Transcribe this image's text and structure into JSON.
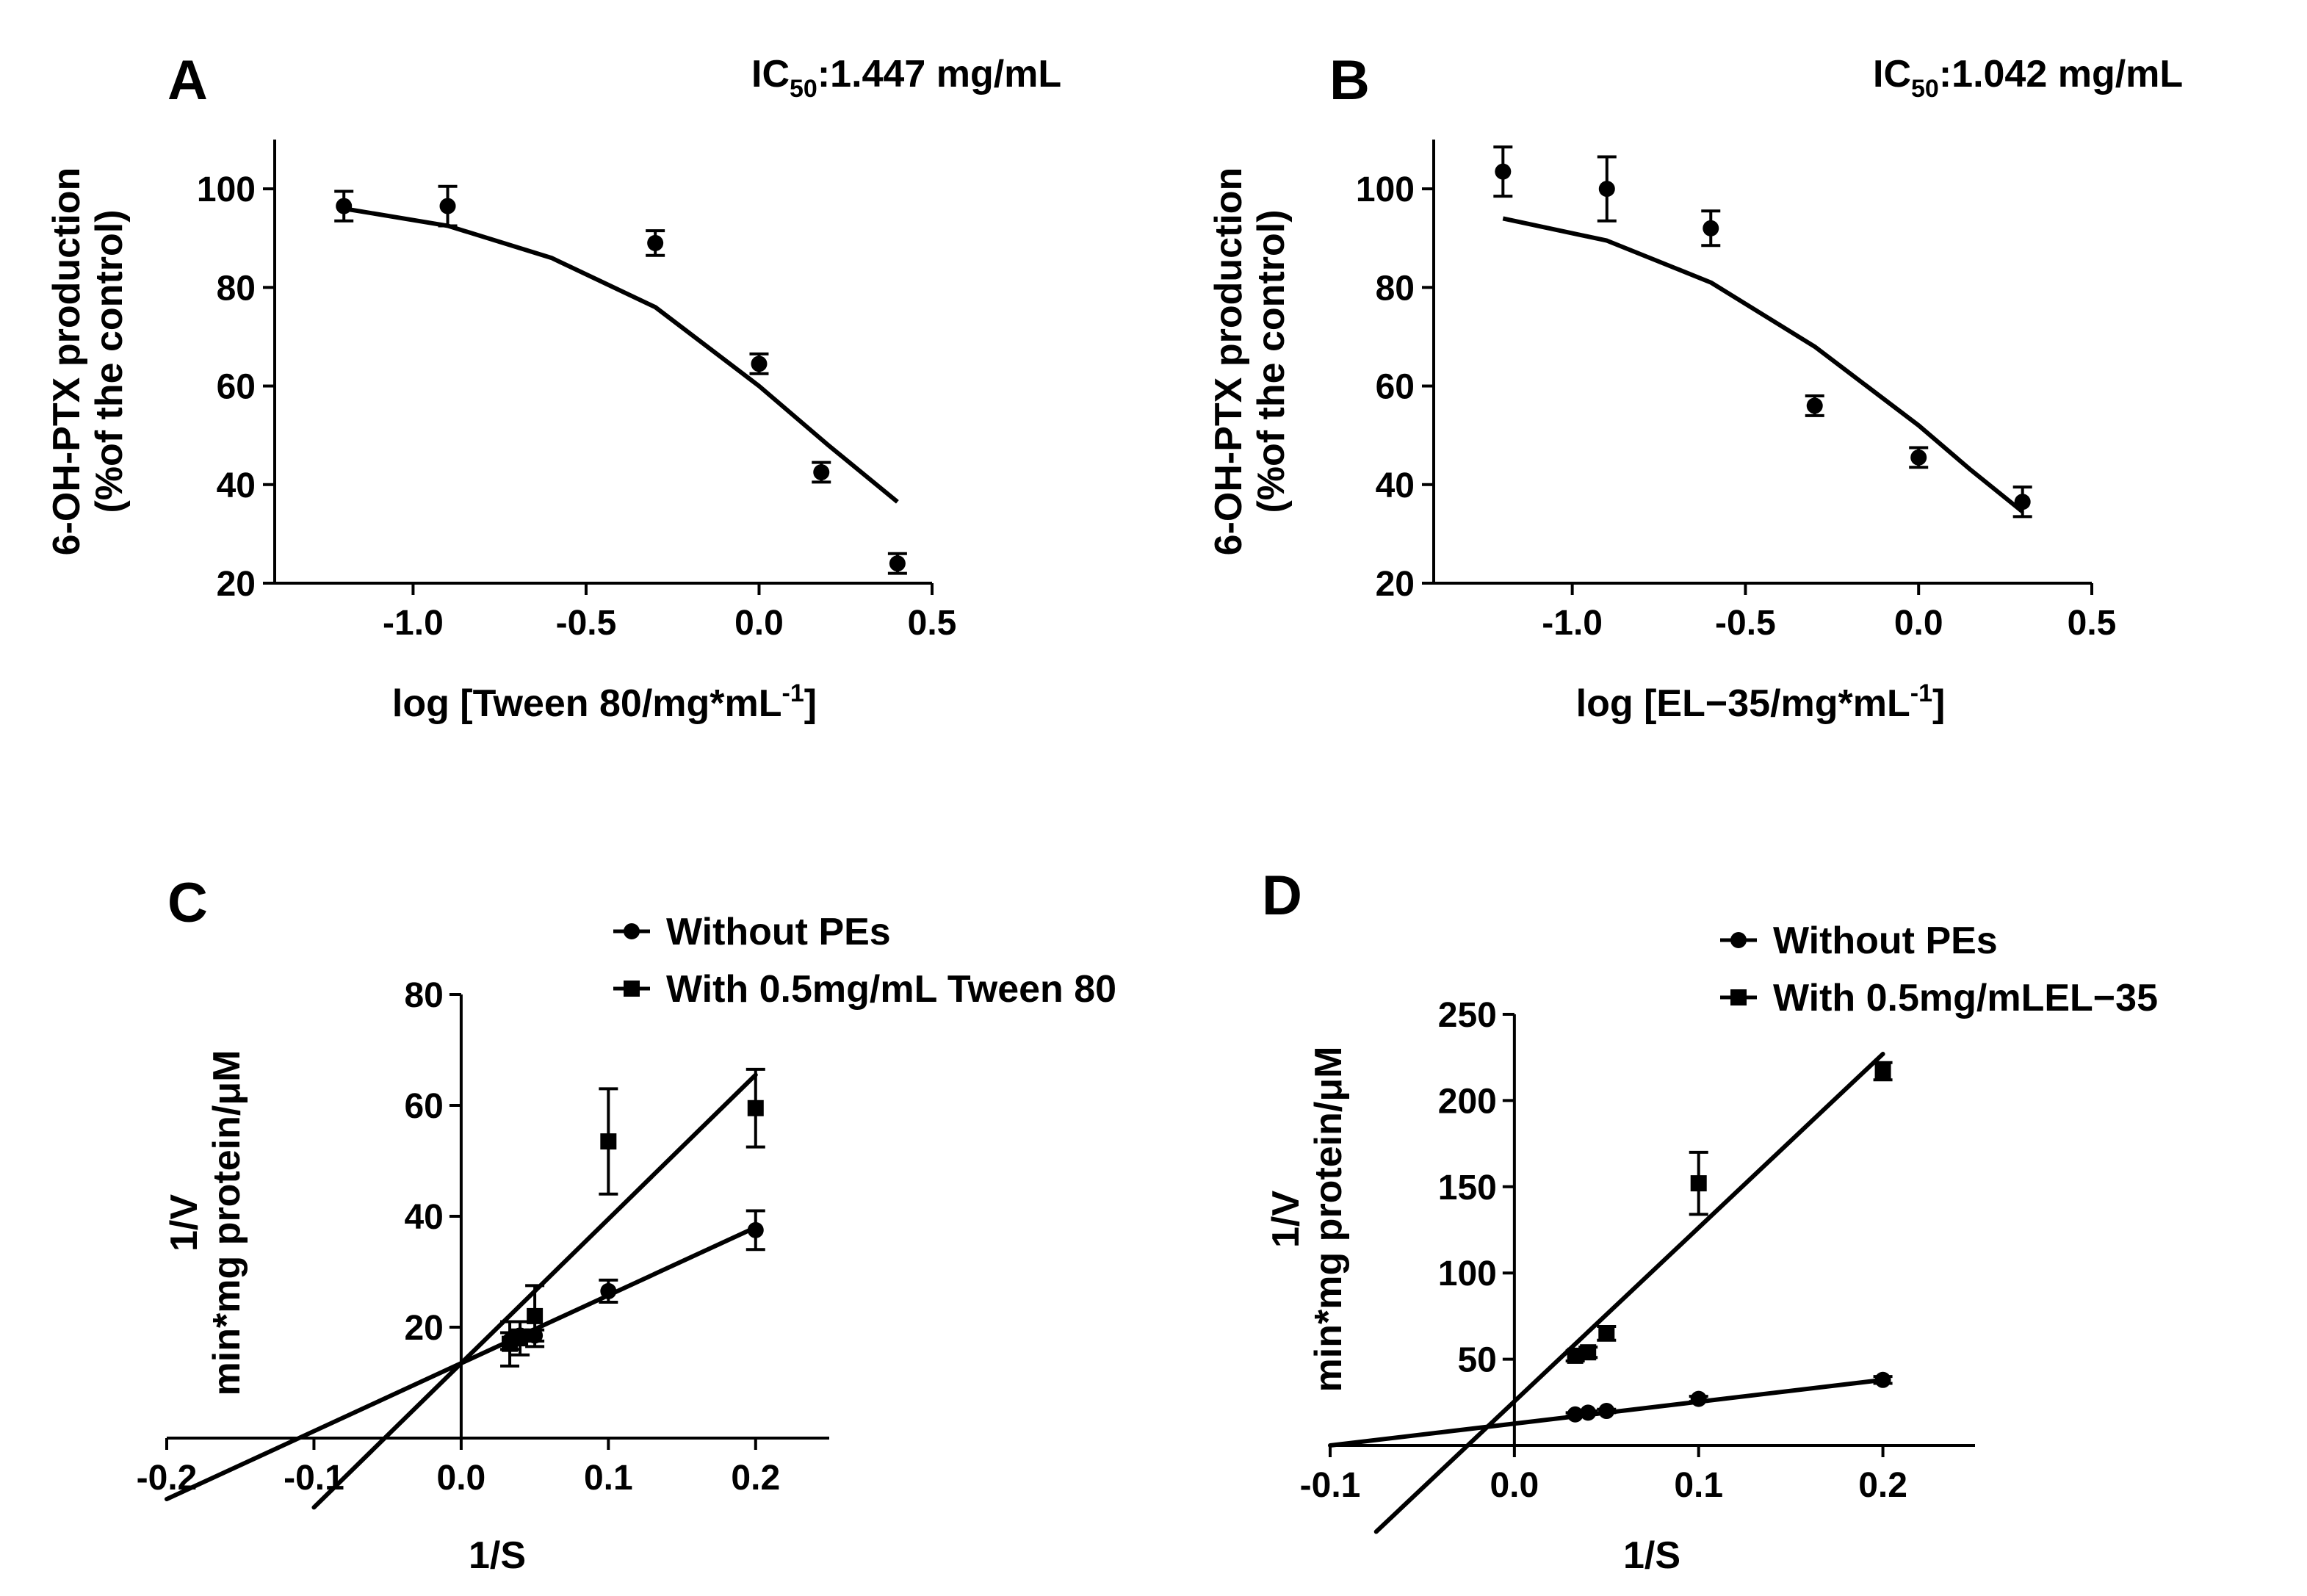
{
  "chart_data": [
    {
      "id": "A",
      "type": "scatter",
      "panel_label": "A",
      "annotation": {
        "prefix": "IC",
        "sub": "50",
        "suffix": ":1.447 mg/mL"
      },
      "xlabel": {
        "main": "log [Tween 80/mg*mL",
        "sup": "-1",
        "tail": "]"
      },
      "ylabel": [
        "6-OH-PTX production",
        "(%of the control)"
      ],
      "xlim": [
        -1.4,
        0.5
      ],
      "ylim": [
        20,
        110
      ],
      "xticks": [
        -1.0,
        -0.5,
        0.0,
        0.5
      ],
      "xtick_labels": [
        "-1.0",
        "-0.5",
        "0.0",
        "0.5"
      ],
      "yticks": [
        20,
        40,
        60,
        80,
        100
      ],
      "ytick_labels": [
        "20",
        "40",
        "60",
        "80",
        "100"
      ],
      "series": [
        {
          "name": "Data",
          "marker": "circle",
          "x": [
            -1.2,
            -0.9,
            -0.3,
            0.0,
            0.18,
            0.4
          ],
          "y": [
            96.5,
            96.5,
            89.0,
            64.5,
            42.5,
            24.0
          ],
          "err": [
            3.0,
            4.0,
            2.5,
            2.0,
            2.0,
            2.0
          ]
        },
        {
          "name": "Fit",
          "type": "line",
          "x": [
            -1.2,
            -0.9,
            -0.6,
            -0.3,
            0.0,
            0.2,
            0.4
          ],
          "y": [
            96.0,
            92.5,
            86.0,
            76.0,
            60.0,
            48.0,
            36.5
          ]
        }
      ]
    },
    {
      "id": "B",
      "type": "scatter",
      "panel_label": "B",
      "annotation": {
        "prefix": "IC",
        "sub": "50",
        "suffix": ":1.042 mg/mL"
      },
      "xlabel": {
        "main": "log [EL−35/mg*mL",
        "sup": "-1",
        "tail": "]"
      },
      "ylabel": [
        "6-OH-PTX production",
        "(%of the control)"
      ],
      "xlim": [
        -1.4,
        0.5
      ],
      "ylim": [
        20,
        110
      ],
      "xticks": [
        -1.0,
        -0.5,
        0.0,
        0.5
      ],
      "xtick_labels": [
        "-1.0",
        "-0.5",
        "0.0",
        "0.5"
      ],
      "yticks": [
        20,
        40,
        60,
        80,
        100
      ],
      "ytick_labels": [
        "20",
        "40",
        "60",
        "80",
        "100"
      ],
      "series": [
        {
          "name": "Data",
          "marker": "circle",
          "x": [
            -1.2,
            -0.9,
            -0.6,
            -0.3,
            0.0,
            0.3
          ],
          "y": [
            103.5,
            100.0,
            92.0,
            56.0,
            45.5,
            36.5
          ],
          "err": [
            5.0,
            6.5,
            3.5,
            2.0,
            2.0,
            3.0
          ]
        },
        {
          "name": "Fit",
          "type": "line",
          "x": [
            -1.2,
            -0.9,
            -0.6,
            -0.3,
            0.0,
            0.15,
            0.3
          ],
          "y": [
            94.0,
            89.5,
            81.0,
            68.0,
            52.0,
            43.0,
            34.5
          ]
        }
      ]
    },
    {
      "id": "C",
      "type": "line",
      "panel_label": "C",
      "xlabel": "1/S",
      "ylabel": [
        "1/V",
        "min*mg protein/μM"
      ],
      "xlim": [
        -0.2,
        0.25
      ],
      "ylim": [
        0,
        80
      ],
      "xticks": [
        -0.2,
        -0.1,
        0.0,
        0.1,
        0.2
      ],
      "xtick_labels": [
        "-0.2",
        "-0.1",
        "0.0",
        "0.1",
        "0.2"
      ],
      "yticks": [
        20,
        40,
        60,
        80
      ],
      "ytick_labels": [
        "20",
        "40",
        "60",
        "80"
      ],
      "legend": [
        "Without PEs",
        "With 0.5mg/mL Tween 80"
      ],
      "legend_position": "top-right",
      "series": [
        {
          "name": "Without PEs",
          "marker": "circle",
          "x": [
            0.033,
            0.04,
            0.05,
            0.1,
            0.2
          ],
          "y": [
            17.5,
            18.5,
            18.5,
            26.5,
            37.5
          ],
          "err": [
            1.5,
            1.0,
            1.0,
            2.0,
            3.5
          ],
          "fit": {
            "x": [
              -0.2,
              0.2
            ],
            "y": [
              -11.0,
              38.0
            ]
          }
        },
        {
          "name": "With 0.5mg/mL Tween 80",
          "marker": "square",
          "x": [
            0.033,
            0.04,
            0.05,
            0.1,
            0.2
          ],
          "y": [
            17.0,
            18.0,
            22.0,
            53.5,
            59.5
          ],
          "err": [
            4.0,
            3.0,
            5.5,
            9.5,
            7.0
          ],
          "fit": {
            "x": [
              -0.1,
              0.2
            ],
            "y": [
              -12.5,
              65.5
            ]
          }
        }
      ]
    },
    {
      "id": "D",
      "type": "line",
      "panel_label": "D",
      "xlabel": "1/S",
      "ylabel": [
        "1/V",
        "min*mg protein/μM"
      ],
      "xlim": [
        -0.1,
        0.25
      ],
      "ylim": [
        0,
        250
      ],
      "xticks": [
        -0.1,
        0.0,
        0.1,
        0.2
      ],
      "xtick_labels": [
        "-0.1",
        "0.0",
        "0.1",
        "0.2"
      ],
      "yticks": [
        50,
        100,
        150,
        200,
        250
      ],
      "ytick_labels": [
        "50",
        "100",
        "150",
        "200",
        "250"
      ],
      "legend": [
        "Without PEs",
        "With 0.5mg/mLEL−35"
      ],
      "legend_position": "top-right",
      "series": [
        {
          "name": "Without PEs",
          "marker": "circle",
          "x": [
            0.033,
            0.04,
            0.05,
            0.1,
            0.2
          ],
          "y": [
            18.0,
            19.0,
            20.0,
            27.0,
            38.0
          ],
          "err": [
            1.0,
            1.0,
            1.0,
            1.5,
            2.0
          ],
          "fit": {
            "x": [
              -0.1,
              0.2
            ],
            "y": [
              0.0,
              38.0
            ]
          }
        },
        {
          "name": "With 0.5mg/mLEL−35",
          "marker": "square",
          "x": [
            0.033,
            0.04,
            0.05,
            0.1,
            0.2
          ],
          "y": [
            52.0,
            54.0,
            65.0,
            152.0,
            217.0
          ],
          "err": [
            3.0,
            3.0,
            4.0,
            18.0,
            5.0
          ],
          "fit": {
            "x": [
              -0.075,
              0.2
            ],
            "y": [
              -50.0,
              227.0
            ]
          }
        }
      ]
    }
  ]
}
